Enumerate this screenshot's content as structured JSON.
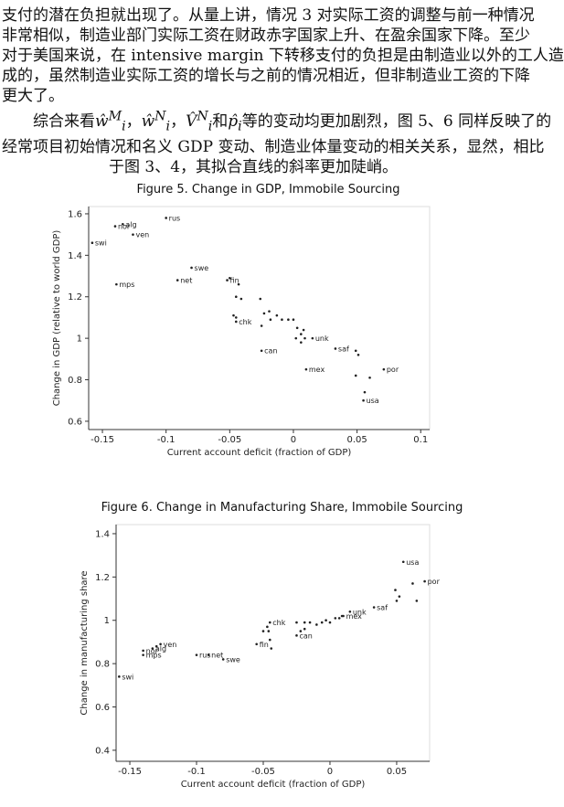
{
  "paragraph1": [
    "支付的潜在负担就出现了。从量上讲，情况 3 对实际工资的调整与前一种情况",
    "非常相似，制造业部门实际工资在财政赤字国家上升、在盈余国家下降。至少",
    "对于美国来说，在 intensive margin 下转移支付的负担是由制造业以外的工人造",
    "成的，虽然制造业实际工资的增长与之前的情况相近，但非制造业工资的下降",
    "更大了。"
  ],
  "paragraph2": {
    "lead": "综合来看",
    "math": [
      {
        "base": "ŵ",
        "sub": "i",
        "sup": "M"
      },
      {
        "base": "ŵ",
        "sub": "i",
        "sup": "N"
      },
      {
        "base": "V̂",
        "sub": "i",
        "sup": "N"
      },
      {
        "base": "p̂",
        "sub": "i"
      }
    ],
    "sep": "，",
    "and": "和",
    "tail": "等的变动均更加剧烈，图 5、6 同样反映了的",
    "line2": "经常项目初始情况和名义 GDP 变动、制造业体量变动的相关关系，显然，相比",
    "line3": "于图 3、4，其拟合直线的斜率更加陡峭。"
  },
  "chart_data": [
    {
      "type": "scatter",
      "title": "Figure 5.  Change in GDP, Immobile Sourcing",
      "x_label": "Current account deficit (fraction of GDP)",
      "y_label": "Change in GDP (relative to world GDP)",
      "color": "#222222",
      "xlim": [
        -0.1608,
        0.107
      ],
      "ylim": [
        0.56,
        1.635
      ],
      "xticks": [
        -0.15,
        -0.1,
        -0.05,
        0,
        0.05,
        0.1
      ],
      "yticks": [
        0.6,
        0.8,
        1,
        1.2,
        1.4,
        1.6
      ],
      "x": [
        -0.1,
        -0.14,
        -0.134,
        -0.126,
        -0.158,
        -0.139,
        -0.091,
        -0.08,
        -0.052,
        -0.045,
        -0.025,
        0.015,
        0.033,
        0.01,
        0.055,
        0.071,
        -0.05,
        -0.043,
        -0.045,
        -0.041,
        -0.047,
        -0.045,
        -0.026,
        -0.023,
        -0.019,
        -0.018,
        -0.013,
        -0.009,
        -0.004,
        0.0,
        -0.025,
        0.003,
        0.006,
        0.008,
        0.002,
        0.009,
        0.006,
        0.049,
        0.051,
        0.049,
        0.06,
        0.056
      ],
      "y": [
        1.58,
        1.54,
        1.55,
        1.5,
        1.46,
        1.26,
        1.28,
        1.34,
        1.28,
        1.08,
        0.94,
        1.0,
        0.95,
        0.85,
        0.7,
        0.85,
        1.29,
        1.26,
        1.2,
        1.19,
        1.11,
        1.1,
        1.19,
        1.12,
        1.13,
        1.09,
        1.11,
        1.09,
        1.09,
        1.09,
        1.06,
        1.05,
        1.02,
        1.04,
        1.0,
        1.0,
        0.98,
        0.94,
        0.92,
        0.82,
        0.81,
        0.74
      ],
      "labels": [
        "rus",
        "nor",
        "alg",
        "ven",
        "swi",
        "mps",
        "net",
        "swe",
        "fin",
        "chk",
        "can",
        "unk",
        "saf",
        "mex",
        "usa",
        "por",
        null,
        null,
        null,
        null,
        null,
        null,
        null,
        null,
        null,
        null,
        null,
        null,
        null,
        null,
        null,
        null,
        null,
        null,
        null,
        null,
        null,
        null,
        null,
        null,
        null,
        null
      ]
    },
    {
      "type": "scatter",
      "title": "Figure 6.  Change in Manufacturing Share, Immobile Sourcing",
      "x_label": "Current account deficit (fraction of GDP)",
      "y_label": "Change in manufacturing share",
      "color": "#222222",
      "xlim": [
        -0.1603,
        0.0747
      ],
      "ylim": [
        0.349,
        1.442
      ],
      "xticks": [
        -0.15,
        -0.1,
        -0.05,
        0,
        0.05
      ],
      "yticks": [
        0.4,
        0.6,
        0.8,
        1,
        1.2,
        1.4
      ],
      "x": [
        -0.158,
        -0.14,
        -0.14,
        -0.133,
        -0.127,
        -0.1,
        -0.091,
        -0.08,
        -0.055,
        -0.045,
        -0.025,
        0.015,
        0.01,
        0.033,
        0.055,
        0.071,
        -0.13,
        -0.05,
        -0.046,
        -0.047,
        -0.044,
        -0.045,
        -0.025,
        -0.022,
        -0.019,
        -0.019,
        -0.015,
        -0.01,
        -0.006,
        -0.003,
        0.0,
        0.004,
        0.007,
        0.009,
        0.05,
        0.052,
        0.049,
        0.062,
        0.065
      ],
      "y": [
        0.74,
        0.86,
        0.84,
        0.87,
        0.89,
        0.84,
        0.84,
        0.82,
        0.89,
        0.99,
        0.93,
        1.04,
        1.02,
        1.06,
        1.27,
        1.18,
        0.88,
        0.95,
        0.95,
        0.97,
        0.87,
        0.91,
        0.99,
        0.95,
        0.96,
        0.99,
        0.99,
        0.98,
        0.99,
        1.0,
        0.99,
        1.01,
        1.01,
        1.02,
        1.09,
        1.11,
        1.14,
        1.17,
        1.09
      ],
      "labels": [
        "swi",
        "nor",
        "mps",
        "alg",
        "ven",
        "rus",
        "net",
        "swe",
        "fin",
        "chk",
        "can",
        "unk",
        "mex",
        "saf",
        "usa",
        "por",
        null,
        null,
        null,
        null,
        null,
        null,
        null,
        null,
        null,
        null,
        null,
        null,
        null,
        null,
        null,
        null,
        null,
        null,
        null,
        null,
        null,
        null,
        null
      ]
    }
  ]
}
